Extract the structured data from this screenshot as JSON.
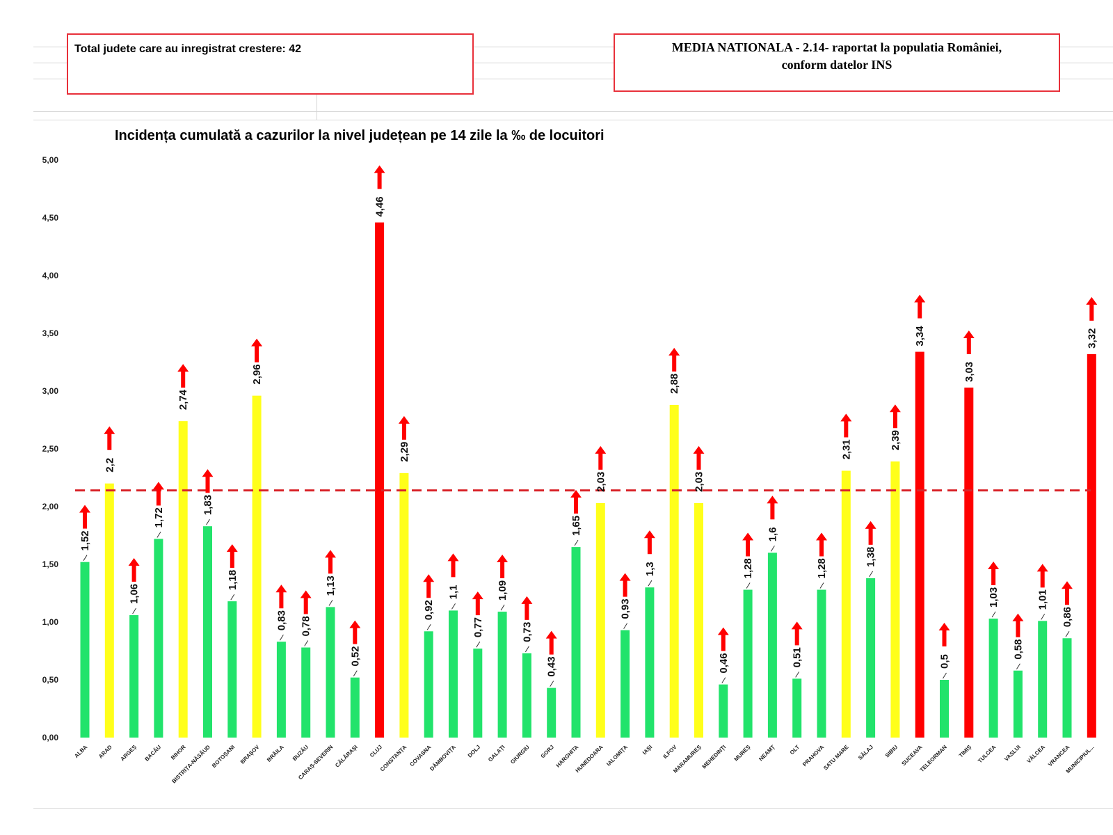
{
  "info_boxes": {
    "left_text": "Total judete care au inregistrat crestere: 42",
    "right_line1": "MEDIA NATIONALA - 2.14-  raportat la populatia României,",
    "right_line2": "conform datelor INS"
  },
  "colors": {
    "green": "#22e36b",
    "yellow": "#ffff1a",
    "red": "#ff0000",
    "arrow": "#ff0000",
    "average_line": "#d9262c",
    "box_border": "#e8303a"
  },
  "chart_data": {
    "type": "bar",
    "title": "Incidența cumulată a cazurilor la nivel județean pe 14 zile la ‰ de locuitori",
    "xlabel": "",
    "ylabel": "",
    "ylim": [
      0,
      5
    ],
    "yticks": [
      "0,00",
      "0,50",
      "1,00",
      "1,50",
      "2,00",
      "2,50",
      "3,00",
      "3,50",
      "4,00",
      "4,50",
      "5,00"
    ],
    "reference_line": {
      "value": 2.14,
      "style": "dashed"
    },
    "grid": false,
    "categories": [
      "ALBA",
      "ARAD",
      "ARGEȘ",
      "BACĂU",
      "BIHOR",
      "BISTRIȚA-NĂSĂUD",
      "BOTOȘANI",
      "BRAȘOV",
      "BRĂILA",
      "BUZĂU",
      "CARAȘ-SEVERIN",
      "CĂLĂRAȘI",
      "CLUJ",
      "CONSTANȚA",
      "COVASNA",
      "DÂMBOVIȚA",
      "DOLJ",
      "GALAȚI",
      "GIURGIU",
      "GORJ",
      "HARGHITA",
      "HUNEDOARA",
      "IALOMIȚA",
      "IAȘI",
      "ILFOV",
      "MARAMUREȘ",
      "MEHEDINȚI",
      "MUREȘ",
      "NEAMȚ",
      "OLT",
      "PRAHOVA",
      "SATU MARE",
      "SĂLAJ",
      "SIBIU",
      "SUCEAVA",
      "TELEORMAN",
      "TIMIȘ",
      "TULCEA",
      "VASLUI",
      "VÂLCEA",
      "VRANCEA",
      "MUNICIPIUL..."
    ],
    "values": [
      1.52,
      2.2,
      1.06,
      1.72,
      2.74,
      1.83,
      1.18,
      2.96,
      0.83,
      0.78,
      1.13,
      0.52,
      4.46,
      2.29,
      0.92,
      1.1,
      0.77,
      1.09,
      0.73,
      0.43,
      1.65,
      2.03,
      0.93,
      1.3,
      2.88,
      2.03,
      0.46,
      1.28,
      1.6,
      0.51,
      1.28,
      2.31,
      1.38,
      2.39,
      3.34,
      0.5,
      3.03,
      1.03,
      0.58,
      1.01,
      0.86,
      3.32
    ],
    "value_labels": [
      "1,52",
      "2,2",
      "1,06",
      "1,72",
      "2,74",
      "1,83",
      "1,18",
      "2,96",
      "0,83",
      "0,78",
      "1,13",
      "0,52",
      "4,46",
      "2,29",
      "0,92",
      "1,1",
      "0,77",
      "1,09",
      "0,73",
      "0,43",
      "1,65",
      "2,03",
      "0,93",
      "1,3",
      "2,88",
      "2,03",
      "0,46",
      "1,28",
      "1,6",
      "0,51",
      "1,28",
      "2,31",
      "1,38",
      "2,39",
      "3,34",
      "0,5",
      "3,03",
      "1,03",
      "0,58",
      "1,01",
      "0,86",
      "3,32"
    ],
    "bar_colors": [
      "green",
      "yellow",
      "green",
      "green",
      "yellow",
      "green",
      "green",
      "yellow",
      "green",
      "green",
      "green",
      "green",
      "red",
      "yellow",
      "green",
      "green",
      "green",
      "green",
      "green",
      "green",
      "green",
      "yellow",
      "green",
      "green",
      "yellow",
      "yellow",
      "green",
      "green",
      "green",
      "green",
      "green",
      "yellow",
      "green",
      "yellow",
      "red",
      "green",
      "red",
      "green",
      "green",
      "green",
      "green",
      "red"
    ],
    "trend": "up-arrow on every bar"
  }
}
